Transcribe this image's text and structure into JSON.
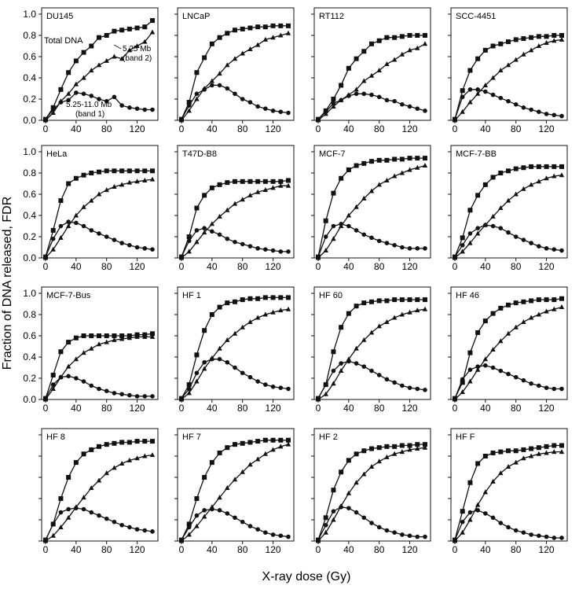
{
  "figure": {
    "ylabel": "Fraction of DNA released, FDR",
    "xlabel": "X-ray dose (Gy)"
  },
  "annotations": {
    "total": "Total DNA",
    "band2_line1": "5.25 Mb",
    "band2_line2": "(band 2)",
    "band1_line1": "5.25-11.0 Mb",
    "band1_line2": "(band 1)"
  },
  "chart_data": {
    "type": "scatter",
    "layout": "4x4 small multiples",
    "xlim": [
      0,
      140
    ],
    "ylim": [
      0,
      1.0
    ],
    "x_ticks": [
      0,
      40,
      80,
      120
    ],
    "y_ticks": [
      0,
      0.2,
      0.4,
      0.6,
      0.8,
      1.0
    ],
    "x": [
      0,
      10,
      20,
      30,
      40,
      50,
      60,
      70,
      80,
      90,
      100,
      110,
      120,
      130,
      140
    ],
    "series_names": [
      "Total DNA",
      "5.25 Mb (band 2)",
      "5.25-11.0 Mb (band 1)"
    ],
    "panels": [
      {
        "title": "DU145",
        "total": [
          0.01,
          0.12,
          0.29,
          0.45,
          0.56,
          0.64,
          0.7,
          0.78,
          0.8,
          0.84,
          0.85,
          0.86,
          0.87,
          0.88,
          0.94
        ],
        "band2": [
          0.0,
          0.07,
          0.18,
          0.25,
          0.34,
          0.4,
          0.47,
          0.52,
          0.56,
          0.6,
          0.58,
          0.66,
          0.7,
          0.74,
          0.83
        ],
        "band1": [
          0.01,
          0.1,
          0.17,
          0.19,
          0.26,
          0.25,
          0.23,
          0.2,
          0.18,
          0.22,
          0.14,
          0.12,
          0.11,
          0.1,
          0.1
        ]
      },
      {
        "title": "LNCaP",
        "total": [
          0.01,
          0.17,
          0.45,
          0.59,
          0.72,
          0.78,
          0.82,
          0.85,
          0.86,
          0.87,
          0.88,
          0.88,
          0.89,
          0.89,
          0.89
        ],
        "band2": [
          0.0,
          0.09,
          0.2,
          0.3,
          0.37,
          0.44,
          0.52,
          0.58,
          0.63,
          0.67,
          0.71,
          0.76,
          0.78,
          0.8,
          0.82
        ],
        "band1": [
          0.01,
          0.14,
          0.25,
          0.29,
          0.33,
          0.33,
          0.3,
          0.25,
          0.2,
          0.17,
          0.13,
          0.11,
          0.09,
          0.08,
          0.07
        ]
      },
      {
        "title": "RT112",
        "total": [
          0.01,
          0.09,
          0.2,
          0.33,
          0.49,
          0.58,
          0.65,
          0.72,
          0.75,
          0.78,
          0.78,
          0.79,
          0.8,
          0.8,
          0.8
        ],
        "band2": [
          0.0,
          0.06,
          0.13,
          0.19,
          0.24,
          0.29,
          0.37,
          0.42,
          0.47,
          0.53,
          0.57,
          0.62,
          0.66,
          0.68,
          0.72
        ],
        "band1": [
          0.01,
          0.08,
          0.16,
          0.19,
          0.23,
          0.25,
          0.25,
          0.24,
          0.22,
          0.19,
          0.18,
          0.15,
          0.13,
          0.11,
          0.09
        ]
      },
      {
        "title": "SCC-4451",
        "total": [
          0.01,
          0.28,
          0.47,
          0.58,
          0.66,
          0.7,
          0.72,
          0.74,
          0.76,
          0.77,
          0.78,
          0.79,
          0.79,
          0.8,
          0.8
        ],
        "band2": [
          0.0,
          0.08,
          0.17,
          0.25,
          0.33,
          0.4,
          0.47,
          0.52,
          0.57,
          0.62,
          0.66,
          0.7,
          0.73,
          0.75,
          0.76
        ],
        "band1": [
          0.01,
          0.22,
          0.29,
          0.29,
          0.27,
          0.24,
          0.21,
          0.18,
          0.15,
          0.12,
          0.1,
          0.08,
          0.06,
          0.05,
          0.04
        ]
      },
      {
        "title": "HeLa",
        "total": [
          0.01,
          0.26,
          0.54,
          0.7,
          0.75,
          0.78,
          0.8,
          0.81,
          0.82,
          0.82,
          0.82,
          0.82,
          0.82,
          0.82,
          0.82
        ],
        "band2": [
          0.0,
          0.08,
          0.19,
          0.3,
          0.4,
          0.48,
          0.54,
          0.6,
          0.64,
          0.67,
          0.69,
          0.71,
          0.72,
          0.73,
          0.74
        ],
        "band1": [
          0.01,
          0.18,
          0.3,
          0.34,
          0.33,
          0.3,
          0.26,
          0.23,
          0.2,
          0.17,
          0.14,
          0.12,
          0.1,
          0.09,
          0.08
        ]
      },
      {
        "title": "T47D-B8",
        "total": [
          0.01,
          0.2,
          0.47,
          0.59,
          0.66,
          0.69,
          0.71,
          0.72,
          0.72,
          0.72,
          0.72,
          0.72,
          0.72,
          0.72,
          0.73
        ],
        "band2": [
          0.0,
          0.06,
          0.15,
          0.24,
          0.32,
          0.39,
          0.45,
          0.51,
          0.55,
          0.59,
          0.62,
          0.64,
          0.66,
          0.68,
          0.68
        ],
        "band1": [
          0.01,
          0.16,
          0.26,
          0.28,
          0.25,
          0.22,
          0.18,
          0.15,
          0.13,
          0.11,
          0.09,
          0.08,
          0.07,
          0.06,
          0.06
        ]
      },
      {
        "title": "MCF-7",
        "total": [
          0.01,
          0.35,
          0.61,
          0.75,
          0.83,
          0.87,
          0.89,
          0.91,
          0.92,
          0.92,
          0.93,
          0.93,
          0.94,
          0.94,
          0.94
        ],
        "band2": [
          0.0,
          0.07,
          0.18,
          0.3,
          0.4,
          0.48,
          0.56,
          0.63,
          0.69,
          0.73,
          0.77,
          0.8,
          0.83,
          0.85,
          0.87
        ],
        "band1": [
          0.01,
          0.2,
          0.3,
          0.32,
          0.3,
          0.26,
          0.22,
          0.19,
          0.16,
          0.14,
          0.12,
          0.1,
          0.09,
          0.09,
          0.09
        ]
      },
      {
        "title": "MCF-7-BB",
        "total": [
          0.01,
          0.19,
          0.45,
          0.59,
          0.69,
          0.76,
          0.8,
          0.82,
          0.84,
          0.85,
          0.86,
          0.86,
          0.86,
          0.86,
          0.86
        ],
        "band2": [
          0.0,
          0.06,
          0.14,
          0.23,
          0.31,
          0.39,
          0.47,
          0.54,
          0.6,
          0.65,
          0.69,
          0.72,
          0.75,
          0.77,
          0.78
        ],
        "band1": [
          0.01,
          0.12,
          0.23,
          0.28,
          0.31,
          0.3,
          0.28,
          0.24,
          0.2,
          0.17,
          0.14,
          0.11,
          0.09,
          0.08,
          0.07
        ]
      },
      {
        "title": "MCF-7-Bus",
        "total": [
          0.01,
          0.23,
          0.45,
          0.54,
          0.58,
          0.6,
          0.6,
          0.6,
          0.6,
          0.6,
          0.6,
          0.6,
          0.61,
          0.61,
          0.62
        ],
        "band2": [
          0.0,
          0.1,
          0.21,
          0.31,
          0.38,
          0.44,
          0.48,
          0.52,
          0.54,
          0.56,
          0.57,
          0.58,
          0.59,
          0.59,
          0.59
        ],
        "band1": [
          0.01,
          0.14,
          0.21,
          0.22,
          0.2,
          0.17,
          0.13,
          0.1,
          0.08,
          0.06,
          0.05,
          0.04,
          0.03,
          0.03,
          0.03
        ]
      },
      {
        "title": "HF 1",
        "total": [
          0.01,
          0.14,
          0.42,
          0.65,
          0.8,
          0.87,
          0.91,
          0.92,
          0.94,
          0.95,
          0.95,
          0.96,
          0.96,
          0.96,
          0.96
        ],
        "band2": [
          0.0,
          0.06,
          0.17,
          0.29,
          0.39,
          0.48,
          0.56,
          0.62,
          0.68,
          0.73,
          0.77,
          0.8,
          0.82,
          0.84,
          0.85
        ],
        "band1": [
          0.01,
          0.1,
          0.25,
          0.35,
          0.38,
          0.38,
          0.35,
          0.3,
          0.25,
          0.21,
          0.17,
          0.14,
          0.12,
          0.11,
          0.1
        ]
      },
      {
        "title": "HF 60",
        "total": [
          0.01,
          0.14,
          0.45,
          0.68,
          0.81,
          0.88,
          0.91,
          0.92,
          0.93,
          0.93,
          0.94,
          0.94,
          0.94,
          0.94,
          0.94
        ],
        "band2": [
          0.0,
          0.05,
          0.15,
          0.27,
          0.38,
          0.48,
          0.56,
          0.63,
          0.69,
          0.73,
          0.77,
          0.8,
          0.82,
          0.84,
          0.85
        ],
        "band1": [
          0.01,
          0.14,
          0.27,
          0.34,
          0.36,
          0.34,
          0.31,
          0.27,
          0.23,
          0.19,
          0.16,
          0.13,
          0.11,
          0.1,
          0.09
        ]
      },
      {
        "title": "HF 46",
        "total": [
          0.01,
          0.16,
          0.44,
          0.63,
          0.74,
          0.81,
          0.86,
          0.89,
          0.91,
          0.92,
          0.93,
          0.94,
          0.94,
          0.94,
          0.95
        ],
        "band2": [
          0.0,
          0.07,
          0.17,
          0.28,
          0.38,
          0.47,
          0.55,
          0.62,
          0.68,
          0.73,
          0.77,
          0.8,
          0.83,
          0.85,
          0.87
        ],
        "band1": [
          0.01,
          0.19,
          0.28,
          0.31,
          0.32,
          0.3,
          0.27,
          0.24,
          0.21,
          0.18,
          0.15,
          0.13,
          0.11,
          0.1,
          0.1
        ]
      },
      {
        "title": "HF 8",
        "total": [
          0.01,
          0.16,
          0.4,
          0.6,
          0.74,
          0.82,
          0.86,
          0.89,
          0.91,
          0.92,
          0.93,
          0.93,
          0.94,
          0.94,
          0.94
        ],
        "band2": [
          0.0,
          0.05,
          0.13,
          0.22,
          0.32,
          0.41,
          0.5,
          0.57,
          0.64,
          0.69,
          0.73,
          0.76,
          0.78,
          0.8,
          0.81
        ],
        "band1": [
          0.01,
          0.16,
          0.27,
          0.3,
          0.31,
          0.3,
          0.27,
          0.24,
          0.21,
          0.18,
          0.15,
          0.13,
          0.11,
          0.1,
          0.09
        ]
      },
      {
        "title": "HF 7",
        "total": [
          0.01,
          0.16,
          0.4,
          0.6,
          0.74,
          0.83,
          0.88,
          0.91,
          0.92,
          0.93,
          0.94,
          0.95,
          0.95,
          0.95,
          0.95
        ],
        "band2": [
          0.0,
          0.06,
          0.14,
          0.23,
          0.32,
          0.41,
          0.5,
          0.58,
          0.65,
          0.72,
          0.77,
          0.82,
          0.86,
          0.89,
          0.91
        ],
        "band1": [
          0.01,
          0.13,
          0.24,
          0.29,
          0.3,
          0.29,
          0.26,
          0.22,
          0.18,
          0.14,
          0.11,
          0.08,
          0.06,
          0.05,
          0.04
        ]
      },
      {
        "title": "HF 2",
        "total": [
          0.01,
          0.22,
          0.48,
          0.65,
          0.76,
          0.82,
          0.85,
          0.87,
          0.88,
          0.89,
          0.89,
          0.9,
          0.9,
          0.91,
          0.91
        ],
        "band2": [
          0.0,
          0.08,
          0.2,
          0.33,
          0.45,
          0.55,
          0.63,
          0.7,
          0.75,
          0.79,
          0.82,
          0.84,
          0.86,
          0.87,
          0.88
        ],
        "band1": [
          0.01,
          0.15,
          0.28,
          0.32,
          0.31,
          0.27,
          0.22,
          0.17,
          0.13,
          0.1,
          0.08,
          0.06,
          0.05,
          0.04,
          0.04
        ]
      },
      {
        "title": "HF F",
        "total": [
          0.01,
          0.28,
          0.55,
          0.73,
          0.8,
          0.83,
          0.84,
          0.85,
          0.85,
          0.86,
          0.87,
          0.88,
          0.89,
          0.9,
          0.9
        ],
        "band2": [
          0.0,
          0.08,
          0.2,
          0.34,
          0.46,
          0.56,
          0.64,
          0.7,
          0.74,
          0.78,
          0.8,
          0.82,
          0.83,
          0.84,
          0.84
        ],
        "band1": [
          0.01,
          0.18,
          0.27,
          0.29,
          0.26,
          0.22,
          0.17,
          0.13,
          0.1,
          0.08,
          0.06,
          0.05,
          0.04,
          0.03,
          0.03
        ]
      }
    ]
  }
}
